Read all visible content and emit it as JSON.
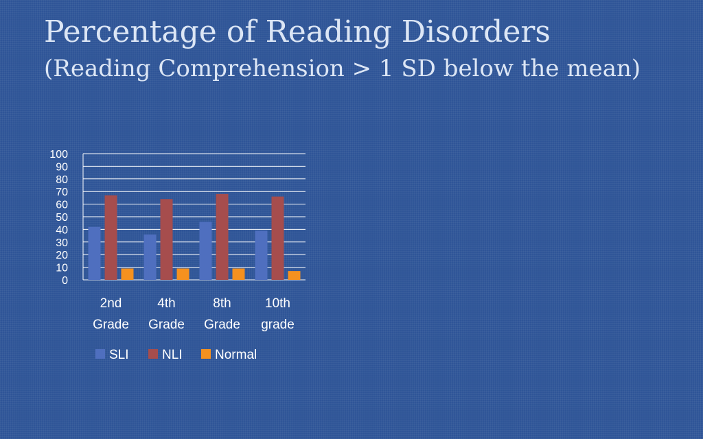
{
  "slide": {
    "title": "Percentage of Reading Disorders",
    "subtitle": "(Reading Comprehension > 1 SD below the mean)"
  },
  "chart_data": {
    "type": "bar",
    "categories": [
      [
        "2nd",
        "Grade"
      ],
      [
        "4th",
        "Grade"
      ],
      [
        "8th",
        "Grade"
      ],
      [
        "10th",
        "grade"
      ]
    ],
    "series": [
      {
        "name": "SLI",
        "color": "#4f6fbf",
        "values": [
          42,
          36,
          46,
          39
        ]
      },
      {
        "name": "NLI",
        "color": "#a64d4d",
        "values": [
          67,
          64,
          68,
          66
        ]
      },
      {
        "name": "Normal",
        "color": "#f5911f",
        "values": [
          9,
          9,
          9,
          7
        ]
      }
    ],
    "ylim": [
      0,
      100
    ],
    "yticks": [
      0,
      10,
      20,
      30,
      40,
      50,
      60,
      70,
      80,
      90,
      100
    ],
    "grid": true,
    "legend": "bottom",
    "colors": {
      "axis": "#ffffff",
      "grid": "#ffffff",
      "text": "#ffffff"
    }
  }
}
